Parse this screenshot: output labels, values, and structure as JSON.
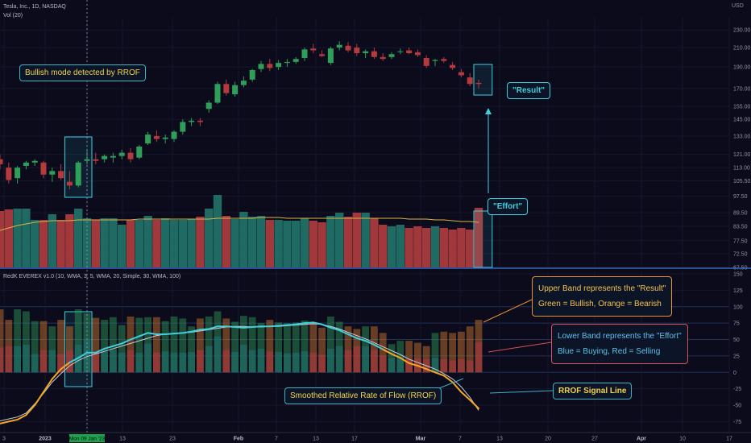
{
  "header": {
    "symbol": "Tesla, Inc., 1D, NASDAQ",
    "volume_label": "Vol (20)",
    "indicator_label": "RedK EVEREX v1.0 (10, WMA, 3, 5, WMA, 20, Simple, 30, WMA, 100)"
  },
  "annotations": {
    "bullish": "Bullish mode detected by RROF",
    "result": "\"Result\"",
    "effort": "\"Effort\"",
    "upper_line1": "Upper Band represents the \"Result\"",
    "upper_line2": "Green = Bullish, Orange = Bearish",
    "lower_line1": "Lower Band represents the \"Effort\"",
    "lower_line2": "Blue = Buying, Red = Selling",
    "rrof": "Smoothed Relative Rate of Flow (RROF)",
    "signal": "RROF Signal Line"
  },
  "colors": {
    "background": "#0b0b1c",
    "bull": "#2e9e58",
    "bear": "#b33a3d",
    "vol_bull": "#1f6b63",
    "vol_bear": "#a1393c",
    "vol_ma": "#d8b44a",
    "rrof": "#3fd0dc",
    "rrof_bear": "#f5a623",
    "signal": "#c9cbd4",
    "highlight": "#3fd0dc",
    "crosshair_label": "#1fa34a"
  },
  "chart_data": [
    {
      "type": "candlestick",
      "unit": "USD",
      "price_ticks": [
        230.0,
        210.0,
        190.0,
        170.0,
        155.0,
        145.0,
        133.0,
        121.0,
        113.0,
        105.5,
        97.5,
        89.5,
        83.5,
        77.5,
        72.5,
        67.5
      ],
      "ylim": [
        67.5,
        245
      ],
      "x_labels": [
        "3",
        "2023",
        "Mon 09 Jan '23",
        "13",
        "23",
        "Feb",
        "7",
        "13",
        "17",
        "Mar",
        "7",
        "13",
        "20",
        "27",
        "Apr",
        "10",
        "17"
      ],
      "candles": [
        {
          "o": 118,
          "h": 121,
          "l": 112,
          "c": 115
        },
        {
          "o": 113,
          "h": 116,
          "l": 104,
          "c": 106
        },
        {
          "o": 107,
          "h": 114,
          "l": 104,
          "c": 113
        },
        {
          "o": 114,
          "h": 117,
          "l": 112,
          "c": 116
        },
        {
          "o": 116,
          "h": 118,
          "l": 114,
          "c": 117
        },
        {
          "o": 116,
          "h": 117,
          "l": 107,
          "c": 109
        },
        {
          "o": 109,
          "h": 113,
          "l": 105,
          "c": 111
        },
        {
          "o": 111,
          "h": 115,
          "l": 106,
          "c": 107
        },
        {
          "o": 105,
          "h": 111,
          "l": 101,
          "c": 103
        },
        {
          "o": 103,
          "h": 117,
          "l": 102,
          "c": 116
        },
        {
          "o": 117,
          "h": 124,
          "l": 115,
          "c": 118
        },
        {
          "o": 118,
          "h": 122,
          "l": 115,
          "c": 117
        },
        {
          "o": 118,
          "h": 121,
          "l": 116,
          "c": 120
        },
        {
          "o": 119,
          "h": 122,
          "l": 116,
          "c": 120
        },
        {
          "o": 120,
          "h": 124,
          "l": 118,
          "c": 122
        },
        {
          "o": 122,
          "h": 125,
          "l": 116,
          "c": 118
        },
        {
          "o": 119,
          "h": 127,
          "l": 118,
          "c": 126
        },
        {
          "o": 128,
          "h": 136,
          "l": 127,
          "c": 134
        },
        {
          "o": 133,
          "h": 137,
          "l": 129,
          "c": 131
        },
        {
          "o": 131,
          "h": 134,
          "l": 128,
          "c": 132
        },
        {
          "o": 131,
          "h": 137,
          "l": 129,
          "c": 136
        },
        {
          "o": 136,
          "h": 145,
          "l": 134,
          "c": 143
        },
        {
          "o": 143,
          "h": 146,
          "l": 140,
          "c": 144
        },
        {
          "o": 144,
          "h": 146,
          "l": 140,
          "c": 143
        },
        {
          "o": 153,
          "h": 160,
          "l": 150,
          "c": 158
        },
        {
          "o": 158,
          "h": 176,
          "l": 157,
          "c": 174
        },
        {
          "o": 174,
          "h": 178,
          "l": 164,
          "c": 166
        },
        {
          "o": 165,
          "h": 176,
          "l": 163,
          "c": 173
        },
        {
          "o": 173,
          "h": 181,
          "l": 171,
          "c": 177
        },
        {
          "o": 178,
          "h": 188,
          "l": 176,
          "c": 187
        },
        {
          "o": 188,
          "h": 196,
          "l": 185,
          "c": 193
        },
        {
          "o": 193,
          "h": 198,
          "l": 186,
          "c": 189
        },
        {
          "o": 190,
          "h": 197,
          "l": 187,
          "c": 194
        },
        {
          "o": 194,
          "h": 198,
          "l": 190,
          "c": 195
        },
        {
          "o": 195,
          "h": 200,
          "l": 193,
          "c": 198
        },
        {
          "o": 199,
          "h": 210,
          "l": 196,
          "c": 208
        },
        {
          "o": 209,
          "h": 214,
          "l": 204,
          "c": 207
        },
        {
          "o": 203,
          "h": 207,
          "l": 200,
          "c": 201
        },
        {
          "o": 194,
          "h": 211,
          "l": 192,
          "c": 209
        },
        {
          "o": 210,
          "h": 217,
          "l": 207,
          "c": 213
        },
        {
          "o": 212,
          "h": 216,
          "l": 205,
          "c": 207
        },
        {
          "o": 210,
          "h": 214,
          "l": 201,
          "c": 204
        },
        {
          "o": 204,
          "h": 208,
          "l": 199,
          "c": 206
        },
        {
          "o": 206,
          "h": 210,
          "l": 198,
          "c": 200
        },
        {
          "o": 200,
          "h": 204,
          "l": 196,
          "c": 198
        },
        {
          "o": 200,
          "h": 205,
          "l": 198,
          "c": 203
        },
        {
          "o": 206,
          "h": 209,
          "l": 203,
          "c": 206
        },
        {
          "o": 207,
          "h": 210,
          "l": 203,
          "c": 204
        },
        {
          "o": 205,
          "h": 208,
          "l": 200,
          "c": 202
        },
        {
          "o": 199,
          "h": 202,
          "l": 189,
          "c": 191
        },
        {
          "o": 196,
          "h": 198,
          "l": 191,
          "c": 197
        },
        {
          "o": 198,
          "h": 200,
          "l": 194,
          "c": 196
        },
        {
          "o": 192,
          "h": 195,
          "l": 187,
          "c": 189
        },
        {
          "o": 185,
          "h": 188,
          "l": 180,
          "c": 182
        },
        {
          "o": 180,
          "h": 184,
          "l": 172,
          "c": 174
        },
        {
          "o": 175,
          "h": 178,
          "l": 170,
          "c": 174
        }
      ]
    },
    {
      "type": "bar",
      "name": "Vol (20)",
      "volume_index": [
        70,
        72,
        73,
        73,
        59,
        59,
        66,
        59,
        66,
        73,
        61,
        59,
        61,
        61,
        53,
        59,
        59,
        64,
        59,
        61,
        59,
        59,
        60,
        63,
        73,
        90,
        64,
        60,
        69,
        63,
        64,
        59,
        59,
        58,
        58,
        61,
        58,
        56,
        64,
        68,
        63,
        68,
        68,
        61,
        53,
        51,
        53,
        49,
        51,
        49,
        51,
        49,
        47,
        49,
        47,
        74
      ],
      "volume_ma": [
        46,
        49,
        52,
        54,
        56,
        57,
        58,
        58,
        58,
        59,
        59,
        59,
        59,
        59,
        59,
        59,
        60,
        60,
        60,
        60,
        60,
        60,
        60,
        60,
        60,
        61,
        61,
        61,
        61,
        61,
        62,
        62,
        62,
        61,
        61,
        61,
        61,
        61,
        61,
        61,
        61,
        61,
        61,
        61,
        61,
        61,
        61,
        60,
        60,
        60,
        59,
        59,
        58,
        57,
        57,
        56
      ]
    },
    {
      "type": "bar",
      "name": "RedK EVEREX v1.0 (10, WMA, 3, 5, WMA, 20, Simple, 30, WMA, 100)",
      "yticks": [
        150,
        125,
        100,
        75,
        50,
        25,
        0,
        -25,
        -50,
        -75
      ],
      "ylim": [
        -88,
        150
      ],
      "result_band": [
        96,
        80,
        96,
        93,
        78,
        78,
        70,
        80,
        70,
        96,
        90,
        83,
        80,
        84,
        72,
        85,
        83,
        84,
        84,
        78,
        85,
        82,
        70,
        82,
        85,
        93,
        82,
        77,
        86,
        84,
        75,
        80,
        76,
        75,
        76,
        79,
        75,
        68,
        85,
        77,
        70,
        66,
        70,
        70,
        60,
        43,
        48,
        48,
        45,
        40,
        60,
        62,
        60,
        62,
        70,
        80
      ],
      "effort_band": [
        38,
        40,
        40,
        42,
        28,
        34,
        34,
        28,
        34,
        42,
        50,
        30,
        32,
        34,
        30,
        34,
        30,
        44,
        30,
        32,
        30,
        30,
        31,
        34,
        40,
        55,
        34,
        31,
        42,
        34,
        36,
        32,
        31,
        29,
        30,
        32,
        30,
        27,
        36,
        40,
        34,
        40,
        40,
        34,
        26,
        22,
        24,
        20,
        22,
        20,
        22,
        20,
        18,
        20,
        18,
        46
      ],
      "rrof": [
        -78,
        -75,
        -72,
        -65,
        -50,
        -30,
        -10,
        5,
        15,
        22,
        30,
        30,
        36,
        40,
        44,
        50,
        55,
        60,
        58,
        58,
        59,
        60,
        62,
        65,
        66,
        70,
        70,
        69,
        68,
        69,
        70,
        70,
        71,
        72,
        73,
        75,
        76,
        73,
        68,
        64,
        58,
        52,
        48,
        42,
        35,
        28,
        22,
        14,
        10,
        5,
        0,
        -5,
        -15,
        -30,
        -42,
        -55
      ],
      "signal": [
        -74,
        -71,
        -68,
        -62,
        -48,
        -32,
        -15,
        -2,
        10,
        18,
        24,
        28,
        32,
        36,
        40,
        44,
        48,
        52,
        56,
        58,
        59,
        60,
        61,
        63,
        65,
        67,
        69,
        70,
        70,
        69,
        69,
        70,
        70,
        71,
        72,
        73,
        74,
        73,
        70,
        66,
        61,
        56,
        51,
        45,
        39,
        33,
        27,
        20,
        15,
        10,
        5,
        -2,
        -10,
        -22,
        -38,
        -58
      ]
    }
  ]
}
